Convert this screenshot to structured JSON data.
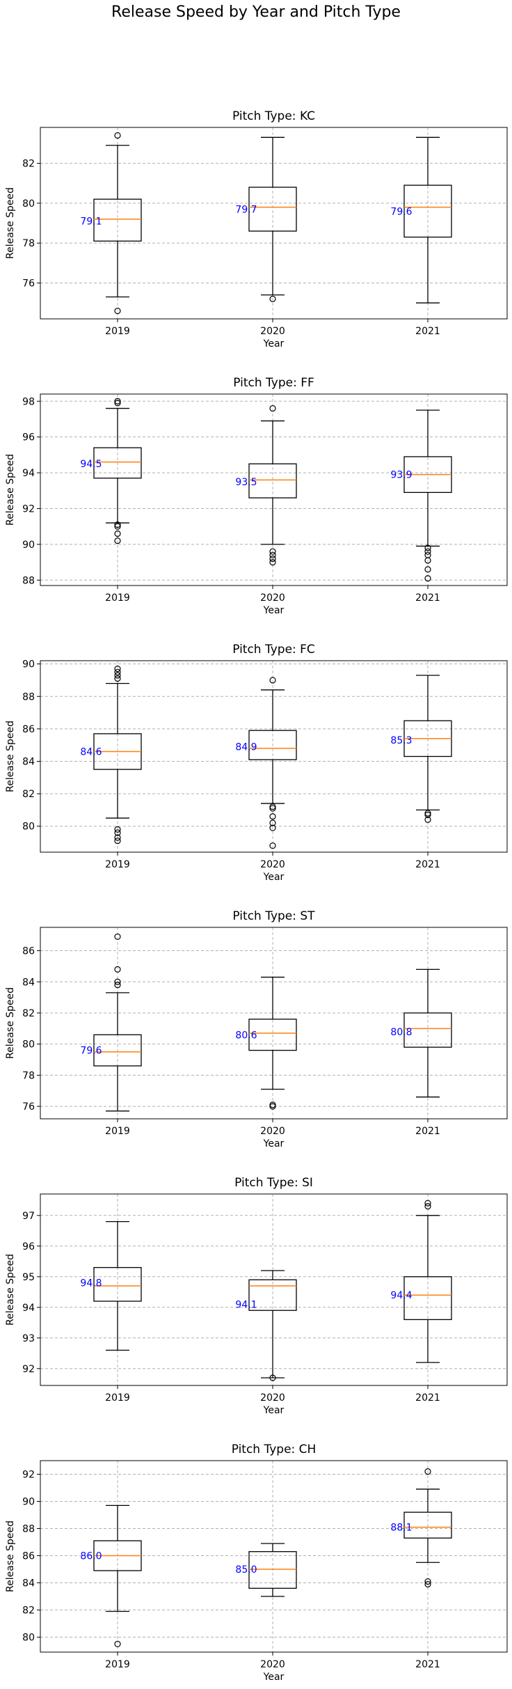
{
  "figure": {
    "title": "Release Speed by Year and Pitch Type"
  },
  "chart_data": [
    {
      "type": "box",
      "title": "Pitch Type: KC",
      "xlabel": "Year",
      "ylabel": "Release Speed",
      "categories": [
        "2019",
        "2020",
        "2021"
      ],
      "yticks": [
        76,
        78,
        80,
        82
      ],
      "ylim": [
        74.2,
        83.8
      ],
      "grid": true,
      "boxes": [
        {
          "whislo": 75.3,
          "q1": 78.1,
          "med": 79.2,
          "q3": 80.2,
          "whishi": 82.9,
          "fliers": [
            74.6,
            83.4
          ],
          "mean_label": "79.1"
        },
        {
          "whislo": 75.4,
          "q1": 78.6,
          "med": 79.8,
          "q3": 80.8,
          "whishi": 83.3,
          "fliers": [
            75.2
          ],
          "mean_label": "79.7"
        },
        {
          "whislo": 75.0,
          "q1": 78.3,
          "med": 79.8,
          "q3": 80.9,
          "whishi": 83.3,
          "fliers": [],
          "mean_label": "79.6"
        }
      ]
    },
    {
      "type": "box",
      "title": "Pitch Type: FF",
      "xlabel": "Year",
      "ylabel": "Release Speed",
      "categories": [
        "2019",
        "2020",
        "2021"
      ],
      "yticks": [
        88,
        90,
        92,
        94,
        96,
        98
      ],
      "ylim": [
        87.7,
        98.4
      ],
      "grid": true,
      "boxes": [
        {
          "whislo": 91.2,
          "q1": 93.7,
          "med": 94.6,
          "q3": 95.4,
          "whishi": 97.6,
          "fliers": [
            90.2,
            90.6,
            91.0,
            91.1,
            97.9,
            98.0
          ],
          "mean_label": "94.5"
        },
        {
          "whislo": 90.0,
          "q1": 92.6,
          "med": 93.6,
          "q3": 94.5,
          "whishi": 96.9,
          "fliers": [
            89.0,
            89.2,
            89.4,
            89.6,
            97.6
          ],
          "mean_label": "93.5"
        },
        {
          "whislo": 89.9,
          "q1": 92.9,
          "med": 93.9,
          "q3": 94.9,
          "whishi": 97.5,
          "fliers": [
            88.1,
            88.6,
            89.1,
            89.4,
            89.6,
            89.8
          ],
          "mean_label": "93.9"
        }
      ]
    },
    {
      "type": "box",
      "title": "Pitch Type: FC",
      "xlabel": "Year",
      "ylabel": "Release Speed",
      "categories": [
        "2019",
        "2020",
        "2021"
      ],
      "yticks": [
        80,
        82,
        84,
        86,
        88,
        90
      ],
      "ylim": [
        78.4,
        90.2
      ],
      "grid": true,
      "boxes": [
        {
          "whislo": 80.5,
          "q1": 83.5,
          "med": 84.6,
          "q3": 85.7,
          "whishi": 88.8,
          "fliers": [
            79.1,
            79.3,
            79.6,
            79.8,
            89.1,
            89.3,
            89.5,
            89.7
          ],
          "mean_label": "84.6"
        },
        {
          "whislo": 81.4,
          "q1": 84.1,
          "med": 84.8,
          "q3": 85.9,
          "whishi": 88.4,
          "fliers": [
            78.8,
            79.9,
            80.2,
            80.6,
            81.1,
            81.2,
            89.0
          ],
          "mean_label": "84.9"
        },
        {
          "whislo": 81.0,
          "q1": 84.3,
          "med": 85.4,
          "q3": 86.5,
          "whishi": 89.3,
          "fliers": [
            80.4,
            80.7,
            80.8
          ],
          "mean_label": "85.3"
        }
      ]
    },
    {
      "type": "box",
      "title": "Pitch Type: ST",
      "xlabel": "Year",
      "ylabel": "Release Speed",
      "categories": [
        "2019",
        "2020",
        "2021"
      ],
      "yticks": [
        76,
        78,
        80,
        82,
        84,
        86
      ],
      "ylim": [
        75.2,
        87.5
      ],
      "grid": true,
      "boxes": [
        {
          "whislo": 75.7,
          "q1": 78.6,
          "med": 79.5,
          "q3": 80.6,
          "whishi": 83.3,
          "fliers": [
            83.8,
            84.0,
            84.8,
            86.9
          ],
          "mean_label": "79.6"
        },
        {
          "whislo": 77.1,
          "q1": 79.6,
          "med": 80.7,
          "q3": 81.6,
          "whishi": 84.3,
          "fliers": [
            76.0,
            76.1
          ],
          "mean_label": "80.6"
        },
        {
          "whislo": 76.6,
          "q1": 79.8,
          "med": 81.0,
          "q3": 82.0,
          "whishi": 84.8,
          "fliers": [],
          "mean_label": "80.8"
        }
      ]
    },
    {
      "type": "box",
      "title": "Pitch Type: SI",
      "xlabel": "Year",
      "ylabel": "Release Speed",
      "categories": [
        "2019",
        "2020",
        "2021"
      ],
      "yticks": [
        92,
        93,
        94,
        95,
        96,
        97
      ],
      "ylim": [
        91.45,
        97.7
      ],
      "grid": true,
      "boxes": [
        {
          "whislo": 92.6,
          "q1": 94.2,
          "med": 94.7,
          "q3": 95.3,
          "whishi": 96.8,
          "fliers": [],
          "mean_label": "94.8"
        },
        {
          "whislo": 91.7,
          "q1": 93.9,
          "med": 94.7,
          "q3": 94.9,
          "whishi": 95.2,
          "fliers": [
            91.7
          ],
          "mean_label": "94.1"
        },
        {
          "whislo": 92.2,
          "q1": 93.6,
          "med": 94.4,
          "q3": 95.0,
          "whishi": 97.0,
          "fliers": [
            97.3,
            97.4
          ],
          "mean_label": "94.4"
        }
      ]
    },
    {
      "type": "box",
      "title": "Pitch Type: CH",
      "xlabel": "Year",
      "ylabel": "Release Speed",
      "categories": [
        "2019",
        "2020",
        "2021"
      ],
      "yticks": [
        80,
        82,
        84,
        86,
        88,
        90,
        92
      ],
      "ylim": [
        78.9,
        93.0
      ],
      "grid": true,
      "boxes": [
        {
          "whislo": 81.9,
          "q1": 84.9,
          "med": 86.0,
          "q3": 87.1,
          "whishi": 89.7,
          "fliers": [
            79.5
          ],
          "mean_label": "86.0"
        },
        {
          "whislo": 83.0,
          "q1": 83.6,
          "med": 85.0,
          "q3": 86.3,
          "whishi": 86.9,
          "fliers": [],
          "mean_label": "85.0"
        },
        {
          "whislo": 85.5,
          "q1": 87.3,
          "med": 88.1,
          "q3": 89.2,
          "whishi": 90.9,
          "fliers": [
            83.9,
            84.1,
            92.2
          ],
          "mean_label": "88.1"
        }
      ]
    }
  ]
}
